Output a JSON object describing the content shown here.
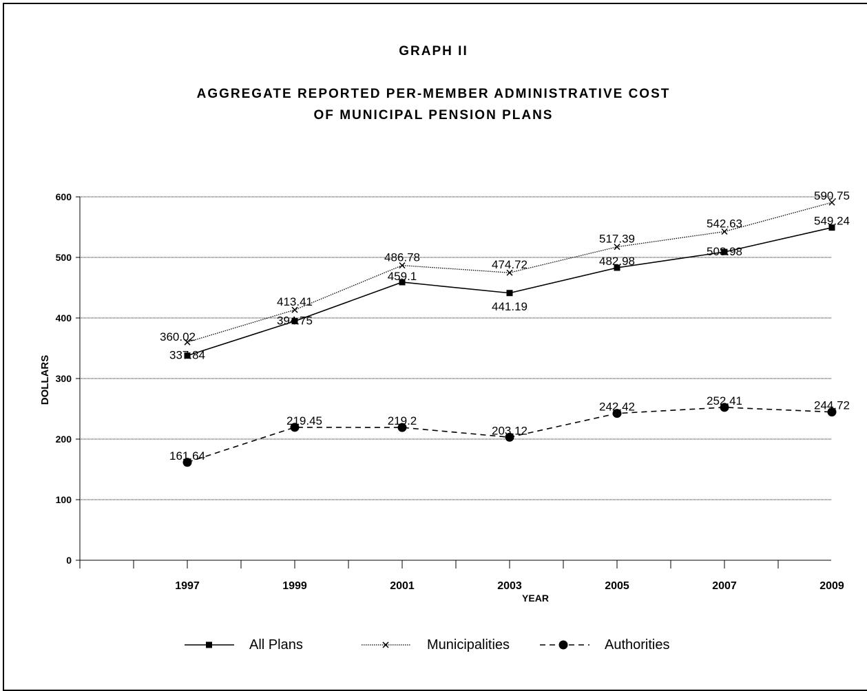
{
  "chart_data": {
    "type": "line",
    "heading": "GRAPH II",
    "title_line1": "AGGREGATE REPORTED PER-MEMBER ADMINISTRATIVE COST",
    "title_line2": "OF MUNICIPAL PENSION PLANS",
    "xlabel": "YEAR",
    "ylabel": "DOLLARS",
    "categories": [
      "1997",
      "1999",
      "2001",
      "2003",
      "2005",
      "2007",
      "2009"
    ],
    "ylim": [
      0,
      600
    ],
    "yticks": [
      0,
      100,
      200,
      300,
      400,
      500,
      600
    ],
    "grid": "horizontal",
    "legend_position": "bottom",
    "series": [
      {
        "name": "All Plans",
        "marker": "square",
        "line": "solid",
        "values": [
          337.84,
          394.75,
          459.1,
          441.19,
          482.98,
          508.98,
          549.24
        ],
        "labels": [
          "337.84",
          "394.75",
          "459.1",
          "441.19",
          "482.98",
          "508.98",
          "549.24"
        ]
      },
      {
        "name": "Municipalities",
        "marker": "x",
        "line": "dotted",
        "values": [
          360.02,
          413.41,
          486.78,
          474.72,
          517.39,
          542.63,
          590.75
        ],
        "labels": [
          "360.02",
          "413.41",
          "486.78",
          "474.72",
          "517.39",
          "542.63",
          "590.75"
        ]
      },
      {
        "name": "Authorities",
        "marker": "circle",
        "line": "dashed",
        "values": [
          161.64,
          219.45,
          219.2,
          203.12,
          242.42,
          252.41,
          244.72
        ],
        "labels": [
          "161.64",
          "219.45",
          "219.2",
          "203.12",
          "242.42",
          "252.41",
          "244.72"
        ]
      }
    ]
  },
  "colors": {
    "ink": "#000000",
    "background": "#ffffff"
  }
}
